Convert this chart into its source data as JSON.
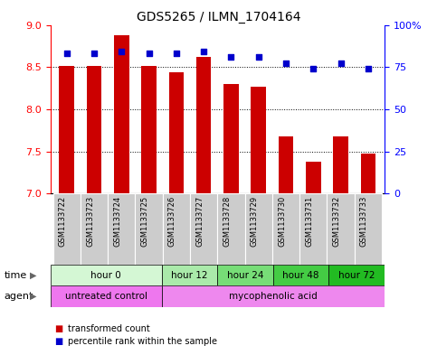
{
  "title": "GDS5265 / ILMN_1704164",
  "samples": [
    "GSM1133722",
    "GSM1133723",
    "GSM1133724",
    "GSM1133725",
    "GSM1133726",
    "GSM1133727",
    "GSM1133728",
    "GSM1133729",
    "GSM1133730",
    "GSM1133731",
    "GSM1133732",
    "GSM1133733"
  ],
  "bar_values": [
    8.51,
    8.51,
    8.88,
    8.51,
    8.44,
    8.62,
    8.3,
    8.27,
    7.68,
    7.38,
    7.68,
    7.47
  ],
  "bar_base": 7.0,
  "percentile_values": [
    83,
    83,
    84,
    83,
    83,
    84,
    81,
    81,
    77,
    74,
    77,
    74
  ],
  "bar_color": "#cc0000",
  "dot_color": "#0000cc",
  "ylim_left": [
    7.0,
    9.0
  ],
  "ylim_right": [
    0,
    100
  ],
  "yticks_left": [
    7.0,
    7.5,
    8.0,
    8.5,
    9.0
  ],
  "yticks_right": [
    0,
    25,
    50,
    75,
    100
  ],
  "ytick_labels_right": [
    "0",
    "25",
    "50",
    "75",
    "100%"
  ],
  "grid_values": [
    7.5,
    8.0,
    8.5
  ],
  "time_groups": [
    {
      "label": "hour 0",
      "start": 0,
      "end": 4,
      "color": "#d4f7d4"
    },
    {
      "label": "hour 12",
      "start": 4,
      "end": 6,
      "color": "#aaeaaa"
    },
    {
      "label": "hour 24",
      "start": 6,
      "end": 8,
      "color": "#77dd77"
    },
    {
      "label": "hour 48",
      "start": 8,
      "end": 10,
      "color": "#44cc44"
    },
    {
      "label": "hour 72",
      "start": 10,
      "end": 12,
      "color": "#22bb22"
    }
  ],
  "agent_groups": [
    {
      "label": "untreated control",
      "start": 0,
      "end": 4,
      "color": "#ee77ee"
    },
    {
      "label": "mycophenolic acid",
      "start": 4,
      "end": 12,
      "color": "#ee88ee"
    }
  ],
  "legend_bar_label": "transformed count",
  "legend_dot_label": "percentile rank within the sample",
  "time_label": "time",
  "agent_label": "agent",
  "bar_width": 0.55,
  "sample_bg_color": "#cccccc",
  "sample_border_color": "#aaaaaa"
}
